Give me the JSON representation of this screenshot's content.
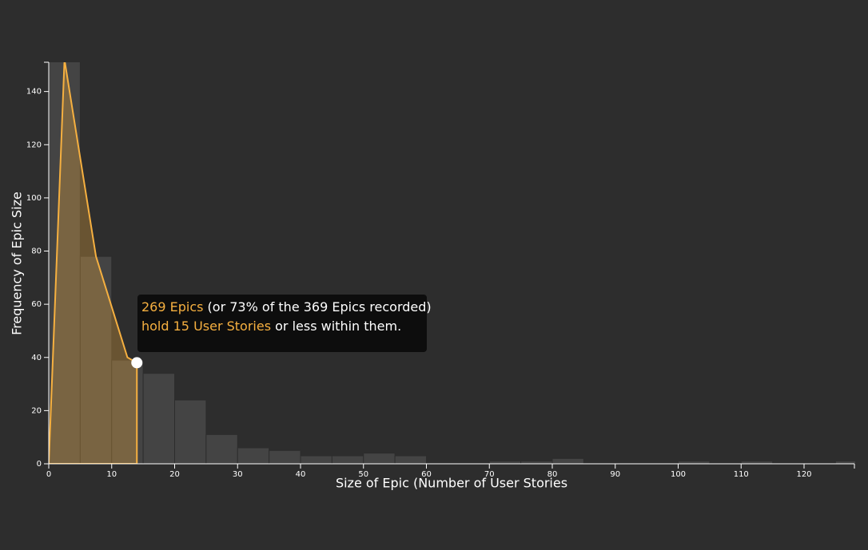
{
  "chart_data": {
    "type": "histogram",
    "xlabel": "Size of Epic (Number of User Stories",
    "ylabel": "Frequency of Epic Size",
    "bins": [
      0,
      5,
      10,
      15,
      20,
      25,
      30,
      35,
      40,
      45,
      50,
      55,
      60,
      65,
      70,
      75,
      80,
      85,
      90,
      95,
      100,
      105,
      110,
      115,
      120,
      125,
      130
    ],
    "counts": [
      152,
      78,
      39,
      34,
      24,
      11,
      6,
      5,
      3,
      3,
      4,
      3,
      0,
      0,
      1,
      1,
      2,
      0,
      0,
      0,
      1,
      0,
      1,
      0,
      0,
      1
    ],
    "color": "#444444",
    "xlim": [
      0,
      128
    ],
    "ylim": [
      0,
      151
    ],
    "xticks": [
      0,
      10,
      20,
      30,
      40,
      50,
      60,
      70,
      80,
      90,
      100,
      110,
      120
    ],
    "yticks": [
      0,
      20,
      40,
      60,
      80,
      100,
      120,
      140
    ],
    "highlight": {
      "color": "#f6b040",
      "x": [
        0,
        2.5,
        7.5,
        12.5,
        14
      ],
      "y": [
        0,
        152,
        78,
        40,
        38
      ]
    },
    "tooltip": {
      "lines": [
        [
          {
            "text": "269 Epics",
            "color": "#f6b040"
          },
          {
            "text": " (or 73% of the 369 Epics recorded)",
            "color": "#ffffff"
          }
        ],
        [
          {
            "text": "hold 15 User Stories",
            "color": "#f6b040"
          },
          {
            "text": " or less within them.",
            "color": "#ffffff"
          }
        ]
      ]
    }
  }
}
